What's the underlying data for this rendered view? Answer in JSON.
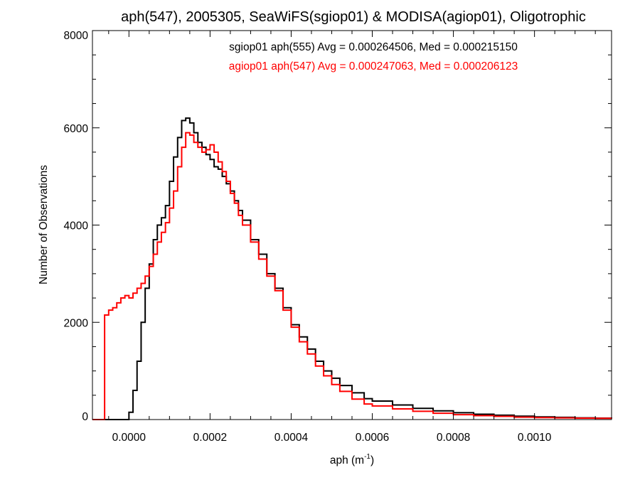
{
  "chart_data": {
    "type": "line",
    "title": "aph(547), 2005305, SeaWiFS(sgiop01) & MODISA(agiop01), Oligotrophic",
    "xlabel_base": "aph (m",
    "xlabel_sup": "-1",
    "xlabel_tail": ")",
    "ylabel": "Number of Observations",
    "xlim": [
      -9e-05,
      0.00119
    ],
    "ylim": [
      0,
      8000
    ],
    "x_ticks": [
      0.0,
      0.0002,
      0.0004,
      0.0006,
      0.0008,
      0.001
    ],
    "x_tick_labels": [
      "0.0000",
      "0.0002",
      "0.0004",
      "0.0006",
      "0.0008",
      "0.0010"
    ],
    "y_ticks": [
      0,
      2000,
      4000,
      6000,
      8000
    ],
    "y_tick_labels": [
      "0",
      "2000",
      "4000",
      "6000",
      "8000"
    ],
    "legend_placement": "top",
    "series": [
      {
        "name": "sgiop01 aph(555) Avg = 0.000264506, Med = 0.000215150",
        "color": "#000000",
        "points": [
          [
            -9e-05,
            0
          ],
          [
            -1e-05,
            0
          ],
          [
            0.0,
            150
          ],
          [
            1e-05,
            600
          ],
          [
            2e-05,
            1200
          ],
          [
            3e-05,
            2000
          ],
          [
            4e-05,
            2700
          ],
          [
            5e-05,
            3200
          ],
          [
            6e-05,
            3700
          ],
          [
            7e-05,
            4000
          ],
          [
            8e-05,
            4150
          ],
          [
            9e-05,
            4400
          ],
          [
            0.0001,
            4900
          ],
          [
            0.00011,
            5400
          ],
          [
            0.00012,
            5800
          ],
          [
            0.00013,
            6150
          ],
          [
            0.00014,
            6200
          ],
          [
            0.00015,
            6100
          ],
          [
            0.00016,
            5900
          ],
          [
            0.00017,
            5700
          ],
          [
            0.00018,
            5600
          ],
          [
            0.00019,
            5450
          ],
          [
            0.0002,
            5350
          ],
          [
            0.00021,
            5200
          ],
          [
            0.00022,
            5150
          ],
          [
            0.00023,
            5000
          ],
          [
            0.00024,
            4850
          ],
          [
            0.00025,
            4700
          ],
          [
            0.00026,
            4500
          ],
          [
            0.00027,
            4300
          ],
          [
            0.00028,
            4100
          ],
          [
            0.0003,
            3700
          ],
          [
            0.00032,
            3400
          ],
          [
            0.00034,
            3000
          ],
          [
            0.00036,
            2700
          ],
          [
            0.00038,
            2300
          ],
          [
            0.0004,
            1950
          ],
          [
            0.00042,
            1700
          ],
          [
            0.00044,
            1450
          ],
          [
            0.00046,
            1200
          ],
          [
            0.00048,
            1000
          ],
          [
            0.0005,
            850
          ],
          [
            0.00052,
            700
          ],
          [
            0.00055,
            550
          ],
          [
            0.00058,
            430
          ],
          [
            0.0006,
            380
          ],
          [
            0.00065,
            300
          ],
          [
            0.0007,
            230
          ],
          [
            0.00075,
            180
          ],
          [
            0.0008,
            140
          ],
          [
            0.00085,
            110
          ],
          [
            0.0009,
            90
          ],
          [
            0.00095,
            70
          ],
          [
            0.001,
            55
          ],
          [
            0.00105,
            45
          ],
          [
            0.0011,
            35
          ],
          [
            0.00115,
            30
          ],
          [
            0.00119,
            25
          ]
        ]
      },
      {
        "name": "agiop01 aph(547) Avg = 0.000247063, Med = 0.000206123",
        "color": "#ff0000",
        "points": [
          [
            -9e-05,
            0
          ],
          [
            -7e-05,
            0
          ],
          [
            -6e-05,
            2150
          ],
          [
            -5e-05,
            2250
          ],
          [
            -4e-05,
            2300
          ],
          [
            -3e-05,
            2400
          ],
          [
            -2e-05,
            2500
          ],
          [
            -1e-05,
            2550
          ],
          [
            0.0,
            2500
          ],
          [
            1e-05,
            2600
          ],
          [
            2e-05,
            2700
          ],
          [
            3e-05,
            2800
          ],
          [
            4e-05,
            2950
          ],
          [
            5e-05,
            3150
          ],
          [
            6e-05,
            3400
          ],
          [
            7e-05,
            3650
          ],
          [
            8e-05,
            3850
          ],
          [
            9e-05,
            4050
          ],
          [
            0.0001,
            4350
          ],
          [
            0.00011,
            4700
          ],
          [
            0.00012,
            5200
          ],
          [
            0.00013,
            5600
          ],
          [
            0.00014,
            5900
          ],
          [
            0.00015,
            5850
          ],
          [
            0.00016,
            5700
          ],
          [
            0.00017,
            5600
          ],
          [
            0.00018,
            5500
          ],
          [
            0.00019,
            5550
          ],
          [
            0.0002,
            5650
          ],
          [
            0.00021,
            5500
          ],
          [
            0.00022,
            5300
          ],
          [
            0.00023,
            5100
          ],
          [
            0.00024,
            4900
          ],
          [
            0.00025,
            4650
          ],
          [
            0.00026,
            4450
          ],
          [
            0.00027,
            4200
          ],
          [
            0.00028,
            4000
          ],
          [
            0.0003,
            3650
          ],
          [
            0.00032,
            3300
          ],
          [
            0.00034,
            2950
          ],
          [
            0.00036,
            2650
          ],
          [
            0.00038,
            2250
          ],
          [
            0.0004,
            1900
          ],
          [
            0.00042,
            1600
          ],
          [
            0.00044,
            1350
          ],
          [
            0.00046,
            1100
          ],
          [
            0.00048,
            900
          ],
          [
            0.0005,
            720
          ],
          [
            0.00052,
            580
          ],
          [
            0.00055,
            420
          ],
          [
            0.00058,
            320
          ],
          [
            0.0006,
            280
          ],
          [
            0.00065,
            220
          ],
          [
            0.0007,
            170
          ],
          [
            0.00075,
            130
          ],
          [
            0.0008,
            100
          ],
          [
            0.00085,
            80
          ],
          [
            0.0009,
            65
          ],
          [
            0.00095,
            50
          ],
          [
            0.001,
            40
          ],
          [
            0.00105,
            35
          ],
          [
            0.0011,
            30
          ],
          [
            0.00115,
            25
          ],
          [
            0.00119,
            20
          ]
        ]
      }
    ]
  }
}
